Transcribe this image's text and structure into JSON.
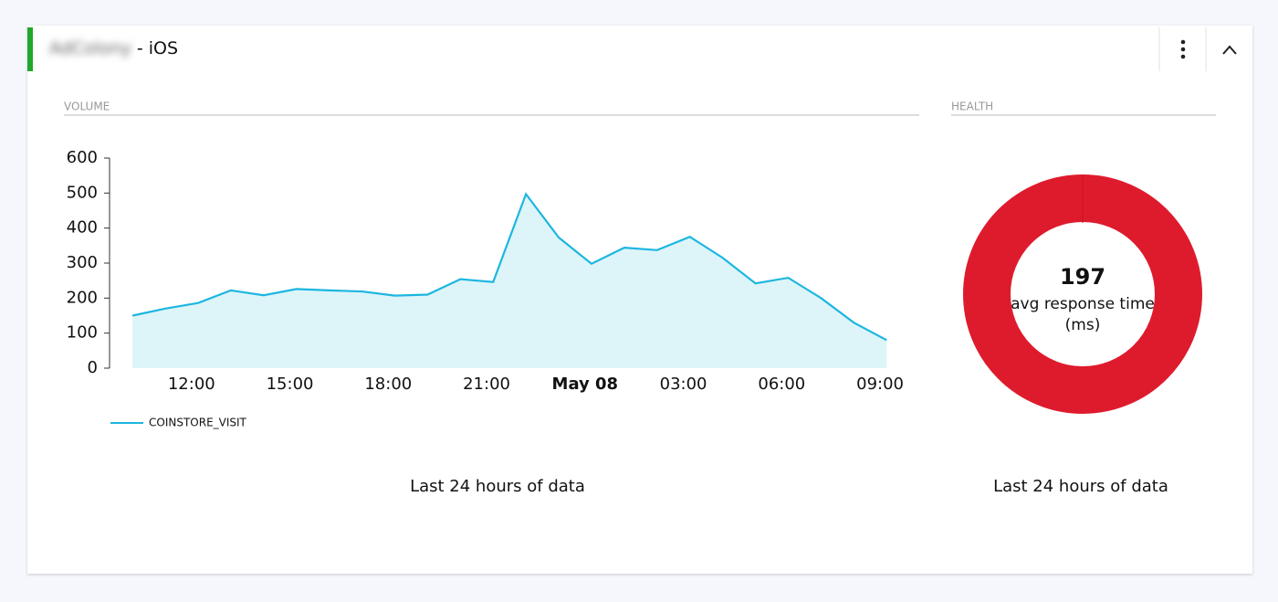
{
  "header": {
    "app": "AdColony",
    "platform": "- iOS"
  },
  "chart_data": [
    {
      "type": "line",
      "section": "VOLUME",
      "x": [
        10.2,
        11.2,
        12.2,
        13.2,
        14.2,
        15.2,
        16.2,
        17.2,
        18.2,
        19.2,
        20.2,
        21.2,
        22.2,
        23.2,
        24.2,
        25.2,
        26.2,
        27.2,
        28.2,
        29.2,
        30.2,
        31.2,
        32.2,
        33.2
      ],
      "series": [
        {
          "name": "COINSTORE_VISIT",
          "color": "#1db6e0",
          "values": [
            150,
            170,
            186,
            222,
            208,
            226,
            222,
            219,
            207,
            210,
            254,
            246,
            497,
            373,
            298,
            344,
            337,
            375,
            315,
            242,
            258,
            200,
            130,
            80
          ]
        }
      ],
      "area_color": "#ddf5f9",
      "xlim": [
        9.5,
        34
      ],
      "xticks": [
        {
          "value": 12,
          "label": "12:00"
        },
        {
          "value": 15,
          "label": "15:00"
        },
        {
          "value": 18,
          "label": "18:00"
        },
        {
          "value": 21,
          "label": "21:00"
        },
        {
          "value": 24,
          "label": "May 08",
          "bold": true
        },
        {
          "value": 27,
          "label": "03:00"
        },
        {
          "value": 30,
          "label": "06:00"
        },
        {
          "value": 33,
          "label": "09:00"
        }
      ],
      "ylim": [
        0,
        600
      ],
      "yticks": [
        0,
        100,
        200,
        300,
        400,
        500,
        600
      ],
      "caption": "Last 24 hours of data"
    },
    {
      "type": "donut",
      "section": "HEALTH",
      "value": 197,
      "label": "avg response time (ms)",
      "color": "#de1b2c",
      "caption": "Last 24 hours of data"
    }
  ]
}
